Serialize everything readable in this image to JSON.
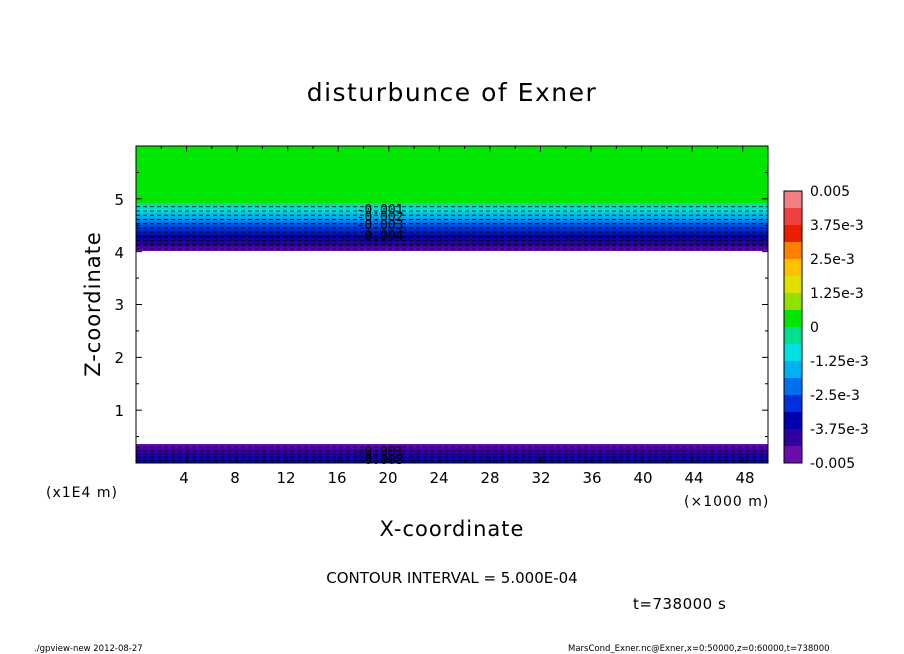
{
  "chart_data": {
    "type": "heatmap",
    "title": "disturbunce of Exner",
    "xlabel": "X-coordinate",
    "ylabel": "Z-coordinate",
    "x_unit": "(×1000 m)",
    "y_unit": "(x1E4 m)",
    "xlim": [
      0,
      50
    ],
    "ylim": [
      0,
      6
    ],
    "x_ticks": [
      "4",
      "8",
      "12",
      "16",
      "20",
      "24",
      "28",
      "32",
      "36",
      "40",
      "44",
      "48"
    ],
    "y_ticks": [
      "1",
      "2",
      "3",
      "4",
      "5"
    ],
    "colorbar": {
      "range": [
        -0.005,
        0.005
      ],
      "tick_labels": [
        "0.005",
        "3.75e-3",
        "2.5e-3",
        "1.25e-3",
        "0",
        "-1.25e-3",
        "-2.5e-3",
        "-3.75e-3",
        "-0.005"
      ]
    },
    "bands": [
      {
        "z_from": 4.0,
        "z_to": 4.85,
        "value_from": -0.005,
        "value_to": -0.0005
      },
      {
        "z_from": 4.85,
        "z_to": 6.0,
        "value": 0.0
      },
      {
        "z_from": 0.35,
        "z_to": 4.0,
        "value": null
      },
      {
        "z_from": 0.0,
        "z_to": 0.35,
        "value_from": -0.001,
        "value_to": -0.005
      }
    ],
    "contour_labels_upper": [
      "-0.001",
      "-0.002",
      "-0.003",
      "-0.004"
    ],
    "contour_labels_lower": [
      "-0.001",
      "-0.003"
    ]
  },
  "footer": {
    "contour_interval": "CONTOUR INTERVAL = 5.000E-04",
    "time": "t=738000 s",
    "program": "./gpview-new  2012-08-27",
    "source": "MarsCond_Exner.nc@Exner,x=0:50000,z=0:60000,t=738000"
  },
  "colors": {
    "green": "#00e600",
    "purple": "#6a0dad",
    "colorbar": [
      "#f08080",
      "#f04040",
      "#e82000",
      "#ff8000",
      "#ffc000",
      "#e0e000",
      "#90e000",
      "#00e600",
      "#00e090",
      "#00e0e0",
      "#00b0f0",
      "#0070f0",
      "#0030e0",
      "#0000b0",
      "#3000a0",
      "#6a0dad"
    ]
  }
}
